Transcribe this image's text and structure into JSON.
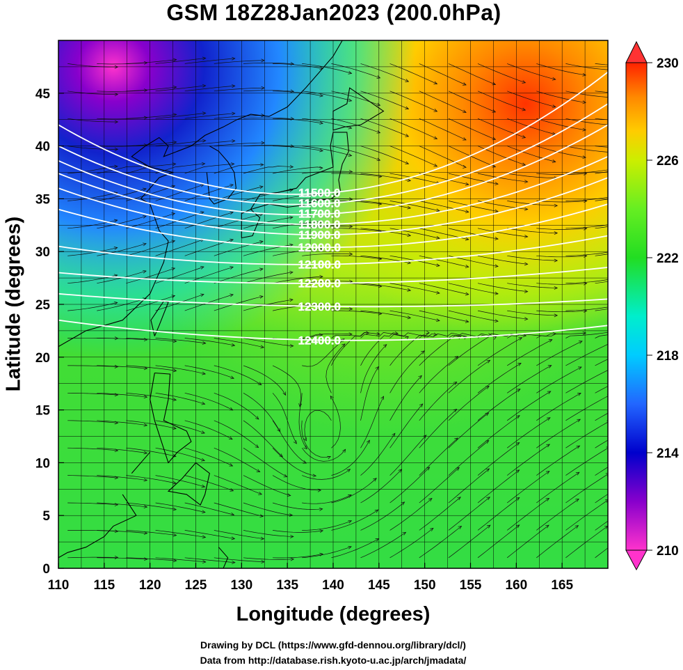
{
  "title": "GSM 18Z28Jan2023 (200.0hPa)",
  "x_axis": {
    "label": "Longitude (degrees)",
    "ticks": [
      "110",
      "115",
      "120",
      "125",
      "130",
      "135",
      "140",
      "145",
      "150",
      "155",
      "160",
      "165"
    ],
    "range": [
      110,
      170
    ]
  },
  "y_axis": {
    "label": "Latitude  (degrees)",
    "ticks": [
      "0",
      "5",
      "10",
      "15",
      "20",
      "25",
      "30",
      "35",
      "40",
      "45"
    ],
    "range": [
      0,
      50
    ]
  },
  "colorbar": {
    "ticks": [
      "210",
      "214",
      "218",
      "222",
      "226",
      "230"
    ],
    "range": [
      210,
      230
    ],
    "colors": [
      "#ff33cc",
      "#8800cc",
      "#0000cc",
      "#2266ff",
      "#00ccff",
      "#00eecc",
      "#22dd22",
      "#66ee22",
      "#ccee00",
      "#ffcc00",
      "#ff8800",
      "#ff2200"
    ]
  },
  "contours": [
    {
      "label": "11500.0",
      "lat_west": 42.0,
      "lat_mid": 35.6,
      "lat_east": 47.0
    },
    {
      "label": "11600.0",
      "lat_west": 40.0,
      "lat_mid": 34.6,
      "lat_east": 44.0
    },
    {
      "label": "11700.0",
      "lat_west": 38.6,
      "lat_mid": 33.6,
      "lat_east": 42.0
    },
    {
      "label": "11800.0",
      "lat_west": 37.4,
      "lat_mid": 32.6,
      "lat_east": 39.0
    },
    {
      "label": "11900.0",
      "lat_west": 36.0,
      "lat_mid": 31.6,
      "lat_east": 37.0
    },
    {
      "label": "12000.0",
      "lat_west": 34.0,
      "lat_mid": 30.4,
      "lat_east": 34.5
    },
    {
      "label": "12100.0",
      "lat_west": 30.5,
      "lat_mid": 28.8,
      "lat_east": 31.5
    },
    {
      "label": "12200.0",
      "lat_west": 28.0,
      "lat_mid": 27.0,
      "lat_east": 28.5
    },
    {
      "label": "12300.0",
      "lat_west": 26.0,
      "lat_mid": 24.8,
      "lat_east": 25.5
    },
    {
      "label": "12400.0",
      "lat_west": 23.5,
      "lat_mid": 21.6,
      "lat_east": 23.0
    }
  ],
  "credits": [
    "Drawing by DCL (https://www.gfd-dennou.org/library/dcl/)",
    "Data from http://database.rish.kyoto-u.ac.jp/arch/jmadata/"
  ]
}
